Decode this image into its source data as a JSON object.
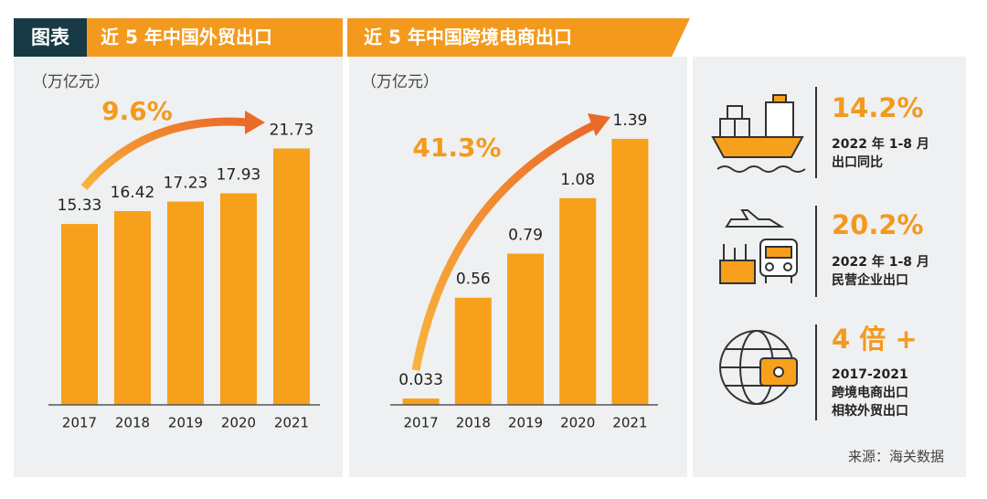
{
  "header": {
    "tag": "图表"
  },
  "chart_data": [
    {
      "type": "bar",
      "title": "近 5 年中国外贸出口",
      "y_label": "（万亿元）",
      "annotation": "9.6%",
      "categories": [
        "2017",
        "2018",
        "2019",
        "2020",
        "2021"
      ],
      "values": [
        15.33,
        16.42,
        17.23,
        17.93,
        21.73
      ],
      "color": "#f7a01b",
      "ylim": [
        0,
        27.5
      ]
    },
    {
      "type": "bar",
      "title": "近 5 年中国跨境电商出口",
      "y_label": "（万亿元）",
      "annotation": "41.3%",
      "categories": [
        "2017",
        "2018",
        "2019",
        "2020",
        "2021"
      ],
      "values": [
        0.033,
        0.56,
        0.79,
        1.08,
        1.39
      ],
      "color": "#f7a01b",
      "ylim": [
        0,
        1.7
      ]
    }
  ],
  "stats": [
    {
      "value": "14.2%",
      "lines": [
        "2022 年 1-8 月",
        "出口同比"
      ]
    },
    {
      "value": "20.2%",
      "lines": [
        "2022 年 1-8 月",
        "民营企业出口"
      ]
    },
    {
      "value": "4 倍 +",
      "lines": [
        "2017-2021",
        "跨境电商出口",
        "相较外贸出口"
      ]
    }
  ],
  "source": "来源：海关数据"
}
